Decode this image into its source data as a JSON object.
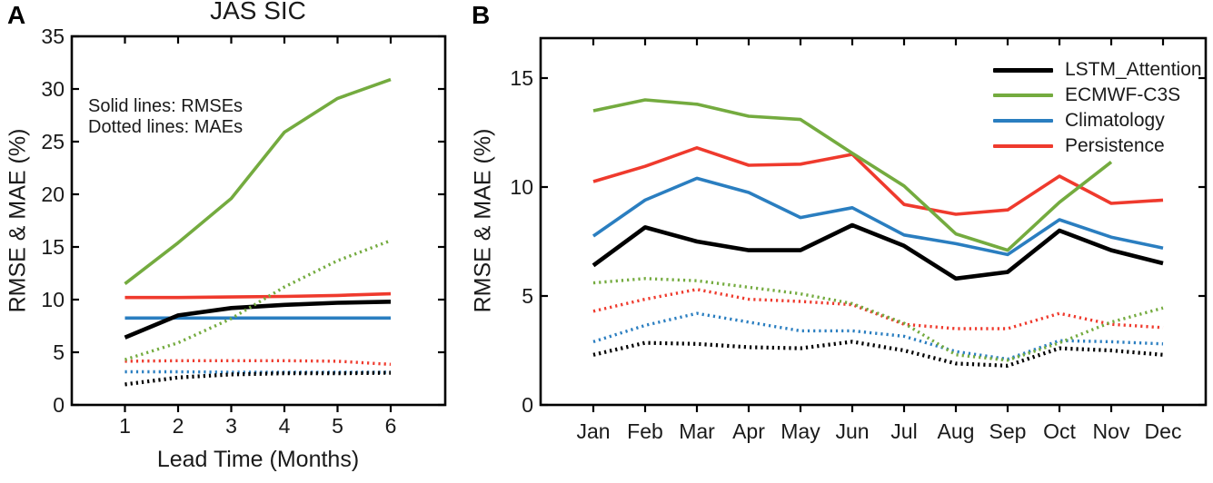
{
  "colors": {
    "black": "#000000",
    "green": "#74ab3f",
    "blue": "#2a7ec0",
    "red": "#ef3a2d"
  },
  "panel_a": {
    "label": "A",
    "title": "JAS SIC",
    "xlabel": "Lead Time (Months)",
    "ylabel": "RMSE & MAE (%)",
    "annotation_line1": "Solid lines: RMSEs",
    "annotation_line2": "Dotted lines: MAEs"
  },
  "panel_b": {
    "label": "B",
    "ylabel": "RMSE & MAE (%)"
  },
  "legend": {
    "position": "top-right",
    "entries": [
      {
        "label": "LSTM_Attention",
        "color": "black"
      },
      {
        "label": "ECMWF-C3S",
        "color": "green"
      },
      {
        "label": "Climatology",
        "color": "blue"
      },
      {
        "label": "Persistence",
        "color": "red"
      }
    ]
  },
  "chart_data": [
    {
      "id": "panel_a",
      "type": "line",
      "title": "JAS SIC",
      "xlabel": "Lead Time (Months)",
      "ylabel": "RMSE & MAE (%)",
      "x_categories": [
        "1",
        "2",
        "3",
        "4",
        "5",
        "6"
      ],
      "ylim": [
        0,
        35
      ],
      "yticks": [
        0,
        5,
        10,
        15,
        20,
        25,
        30,
        35
      ],
      "ytick_labels": [
        "0",
        "5",
        "10",
        "15",
        "20",
        "25",
        "30",
        "35"
      ],
      "grid": false,
      "annotation": [
        "Solid lines: RMSEs",
        "Dotted lines: MAEs"
      ],
      "series": [
        {
          "name": "Climatology",
          "metric": "RMSE",
          "style": "solid",
          "color": "blue",
          "values": [
            8.25,
            8.25,
            8.25,
            8.25,
            8.25,
            8.25
          ]
        },
        {
          "name": "Persistence",
          "metric": "RMSE",
          "style": "solid",
          "color": "red",
          "values": [
            10.2,
            10.2,
            10.25,
            10.3,
            10.4,
            10.55
          ]
        },
        {
          "name": "ECMWF-C3S",
          "metric": "RMSE",
          "style": "solid",
          "color": "green",
          "values": [
            11.5,
            15.4,
            19.6,
            25.9,
            29.1,
            30.9
          ]
        },
        {
          "name": "LSTM_Attention",
          "metric": "RMSE",
          "style": "solid",
          "color": "black",
          "values": [
            6.4,
            8.5,
            9.2,
            9.5,
            9.7,
            9.8
          ]
        },
        {
          "name": "Climatology",
          "metric": "MAE",
          "style": "dotted",
          "color": "blue",
          "values": [
            3.15,
            3.15,
            3.1,
            3.1,
            3.1,
            3.1
          ]
        },
        {
          "name": "Persistence",
          "metric": "MAE",
          "style": "dotted",
          "color": "red",
          "values": [
            4.15,
            4.2,
            4.2,
            4.2,
            4.15,
            3.85
          ]
        },
        {
          "name": "ECMWF-C3S",
          "metric": "MAE",
          "style": "dotted",
          "color": "green",
          "values": [
            4.3,
            5.9,
            8.2,
            11.2,
            13.7,
            15.6
          ]
        },
        {
          "name": "LSTM_Attention",
          "metric": "MAE",
          "style": "dotted",
          "color": "black",
          "values": [
            1.95,
            2.6,
            2.9,
            3.0,
            3.0,
            3.05
          ]
        }
      ]
    },
    {
      "id": "panel_b",
      "type": "line",
      "title": "",
      "xlabel": "",
      "ylabel": "RMSE & MAE (%)",
      "x_categories": [
        "Jan",
        "Feb",
        "Mar",
        "Apr",
        "May",
        "Jun",
        "Jul",
        "Aug",
        "Sep",
        "Oct",
        "Nov",
        "Dec"
      ],
      "ylim": [
        0,
        16.85
      ],
      "yticks": [
        0,
        5,
        10,
        15
      ],
      "ytick_labels": [
        "0",
        "5",
        "10",
        "15"
      ],
      "grid": false,
      "legend_entries": [
        "LSTM_Attention",
        "ECMWF-C3S",
        "Climatology",
        "Persistence"
      ],
      "series": [
        {
          "name": "Climatology",
          "metric": "RMSE",
          "style": "solid",
          "color": "blue",
          "values": [
            7.75,
            9.4,
            10.4,
            9.75,
            8.6,
            9.05,
            7.8,
            7.4,
            6.9,
            8.5,
            7.7,
            7.2
          ]
        },
        {
          "name": "Persistence",
          "metric": "RMSE",
          "style": "solid",
          "color": "red",
          "values": [
            10.25,
            10.95,
            11.8,
            11.0,
            11.05,
            11.5,
            9.2,
            8.75,
            8.95,
            10.5,
            9.25,
            9.4
          ]
        },
        {
          "name": "ECMWF-C3S",
          "metric": "RMSE",
          "style": "solid",
          "color": "green",
          "values": [
            13.5,
            14.0,
            13.8,
            13.25,
            13.1,
            11.55,
            10.05,
            7.85,
            7.1,
            9.3,
            11.15,
            null
          ]
        },
        {
          "name": "LSTM_Attention",
          "metric": "RMSE",
          "style": "solid",
          "color": "black",
          "values": [
            6.4,
            8.15,
            7.5,
            7.1,
            7.1,
            8.25,
            7.3,
            5.8,
            6.1,
            8.0,
            7.1,
            6.5
          ]
        },
        {
          "name": "Climatology",
          "metric": "MAE",
          "style": "dotted",
          "color": "blue",
          "values": [
            2.9,
            3.65,
            4.2,
            3.8,
            3.4,
            3.4,
            3.15,
            2.45,
            2.1,
            2.95,
            2.9,
            2.8
          ]
        },
        {
          "name": "Persistence",
          "metric": "MAE",
          "style": "dotted",
          "color": "red",
          "values": [
            4.3,
            4.85,
            5.3,
            4.85,
            4.75,
            4.6,
            3.7,
            3.5,
            3.5,
            4.2,
            3.7,
            3.55
          ]
        },
        {
          "name": "ECMWF-C3S",
          "metric": "MAE",
          "style": "dotted",
          "color": "green",
          "values": [
            5.6,
            5.8,
            5.7,
            5.4,
            5.1,
            4.65,
            3.75,
            2.3,
            2.05,
            2.85,
            3.8,
            4.45
          ]
        },
        {
          "name": "LSTM_Attention",
          "metric": "MAE",
          "style": "dotted",
          "color": "black",
          "values": [
            2.3,
            2.85,
            2.8,
            2.65,
            2.6,
            2.9,
            2.5,
            1.9,
            1.8,
            2.6,
            2.5,
            2.3
          ]
        }
      ]
    }
  ]
}
